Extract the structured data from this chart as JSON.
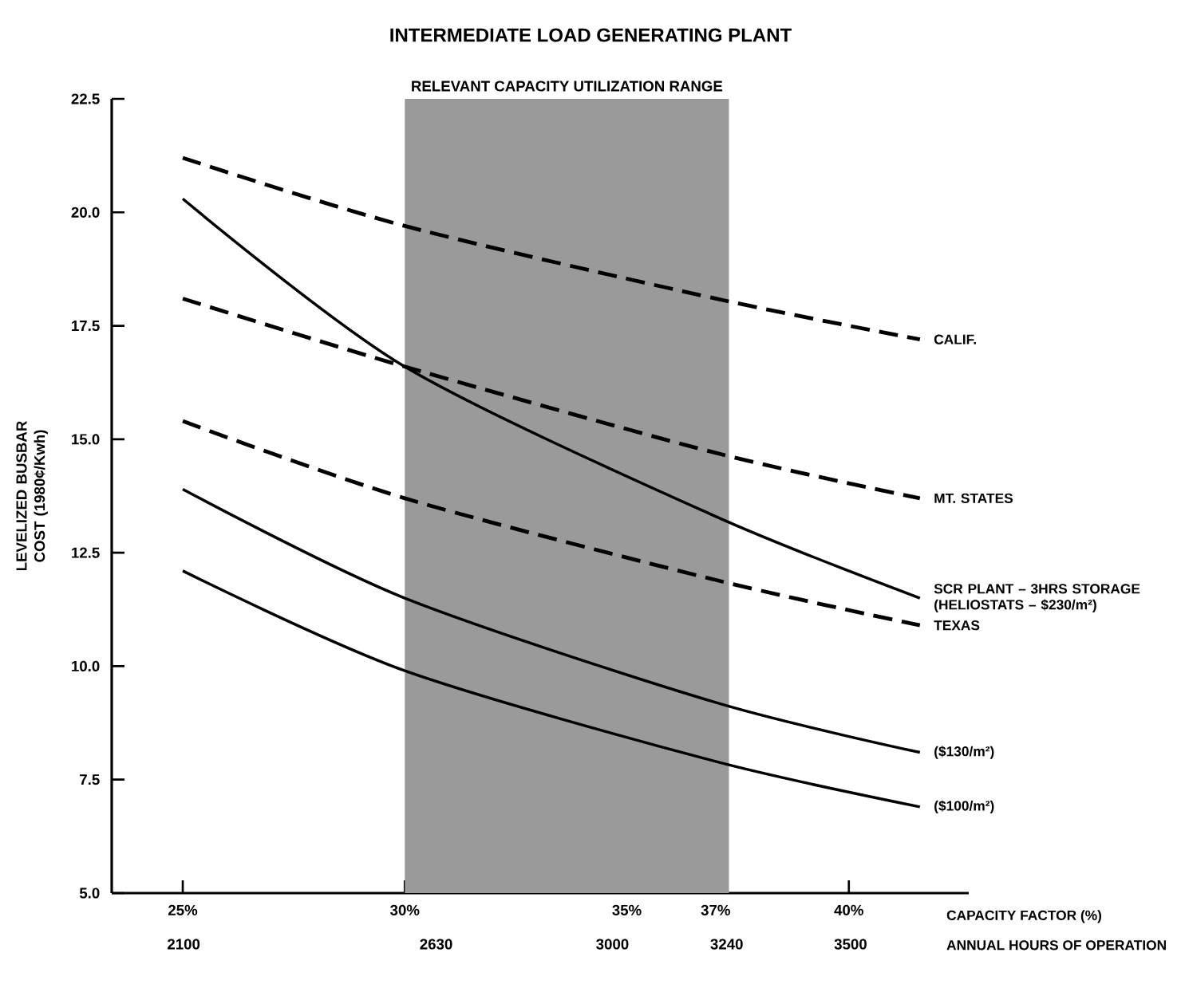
{
  "chart_data": {
    "type": "line",
    "title": "INTERMEDIATE LOAD GENERATING PLANT",
    "xlabel": "CAPACITY FACTOR (%)",
    "x2label": "ANNUAL HOURS OF OPERATION",
    "ylabel": "LEVELIZED BUSBAR COST (1980¢/Kwh)",
    "x": [
      25,
      30,
      37,
      41.6
    ],
    "xlim": [
      23.4,
      42.7
    ],
    "xticks": [
      {
        "value": 25,
        "label": "25%"
      },
      {
        "value": 30,
        "label": "30%"
      },
      {
        "value": 35,
        "label": "35%"
      },
      {
        "value": 37,
        "label": "37%"
      },
      {
        "value": 40,
        "label": "40%"
      }
    ],
    "x2lim": [
      1949,
      3748
    ],
    "x2ticks": [
      2100,
      2630,
      3000,
      3240,
      3500
    ],
    "ylim": [
      5,
      22.5
    ],
    "yticks": [
      {
        "value": 5,
        "label": "5.0"
      },
      {
        "value": 7.5,
        "label": "7.5"
      },
      {
        "value": 10,
        "label": "10.0"
      },
      {
        "value": 12.5,
        "label": "12.5"
      },
      {
        "value": 15,
        "label": "15.0"
      },
      {
        "value": 17.5,
        "label": "17.5"
      },
      {
        "value": 20,
        "label": "20.0"
      },
      {
        "value": 22.5,
        "label": "22.5"
      }
    ],
    "series": [
      {
        "name": "CALIF.",
        "color": "#000000",
        "line_style": "dashed",
        "values": [
          21.2,
          19.7,
          18.1,
          17.2
        ]
      },
      {
        "name": "MT. STATES",
        "color": "#000000",
        "line_style": "dashed",
        "values": [
          18.1,
          16.6,
          14.7,
          13.7
        ]
      },
      {
        "name": "SCR PLANT – 3HRS STORAGE (HELIOSTATS – $230/m²)",
        "color": "#000000",
        "line_style": "solid",
        "values": [
          20.3,
          16.6,
          13.3,
          11.5
        ]
      },
      {
        "name": "TEXAS",
        "color": "#000000",
        "line_style": "dashed",
        "values": [
          15.4,
          13.7,
          11.9,
          10.9
        ]
      },
      {
        "name": "($130/m²)",
        "color": "#000000",
        "line_style": "solid",
        "values": [
          13.9,
          11.5,
          9.2,
          8.1
        ]
      },
      {
        "name": "($100/m²)",
        "color": "#000000",
        "line_style": "solid",
        "values": [
          12.1,
          9.9,
          7.9,
          6.9
        ]
      }
    ],
    "bands": [
      {
        "axis": "x",
        "from": 30,
        "to": 37.3,
        "label": "RELEVANT CAPACITY UTILIZATION RANGE",
        "color": "#9a9a9a"
      }
    ]
  }
}
